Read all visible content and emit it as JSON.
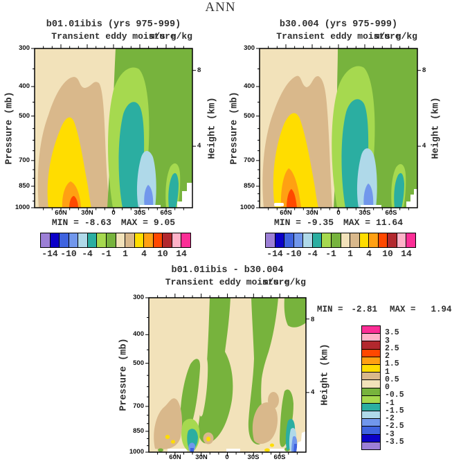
{
  "page_title": "ANN",
  "palette": [
    "#9C7FD6",
    "#0B00C8",
    "#3F63DF",
    "#7197EC",
    "#AFD9E9",
    "#2BAEA1",
    "#A6D94F",
    "#77B33D",
    "#F2E2BA",
    "#D9B88B",
    "#FFDD00",
    "#FFA013",
    "#FF4800",
    "#B2282E",
    "#FFB2C8",
    "#FB2E96"
  ],
  "panels": [
    {
      "title": "b01.01ibis (yrs 975-999)",
      "subtitle": "Transient eddy moisture",
      "units": "m/s g/kg",
      "min_label": "MIN =",
      "min_value": "-8.63",
      "max_label": "MAX =",
      "max_value": "9.05"
    },
    {
      "title": "b30.004 (yrs 975-999)",
      "subtitle": "Transient eddy moisture",
      "units": "m/s g/kg",
      "min_label": "MIN =",
      "min_value": "-9.35",
      "max_label": "MAX =",
      "max_value": "11.64"
    },
    {
      "title": "b01.01ibis - b30.004",
      "subtitle": "Transient eddy moisture",
      "units": "m/s g/kg",
      "min_label": "MIN =",
      "min_value": "-2.81",
      "max_label": "MAX =",
      "max_value": "1.94"
    }
  ],
  "axes": {
    "pressure_label": "Pressure (mb)",
    "height_label": "Height (km)",
    "pressure_ticks": [
      "300",
      "400",
      "500",
      "700",
      "850",
      "1000"
    ],
    "lat_ticks": [
      "60N",
      "30N",
      "0",
      "30S",
      "60S"
    ],
    "height_ticks": [
      "8",
      "4"
    ]
  },
  "colorbar_horizontal": {
    "labels": [
      "-14",
      "-10",
      "-4",
      "-1",
      "1",
      "4",
      "10",
      "14"
    ]
  },
  "colorbar_vertical": {
    "labels": [
      "3.5",
      "3",
      "2.5",
      "2",
      "1.5",
      "1",
      "0.5",
      "0",
      "-0.5",
      "-1",
      "-1.5",
      "-2",
      "-2.5",
      "-3",
      "-3.5"
    ]
  },
  "chart_data": [
    {
      "type": "filled-contour",
      "season": "ANN",
      "title": "b01.01ibis (yrs 975-999)",
      "variable": "Transient eddy moisture",
      "units": "m/s g/kg",
      "min": -8.63,
      "max": 9.05,
      "x_axis": {
        "ticks": [
          "60N",
          "30N",
          "0",
          "30S",
          "60S"
        ],
        "range": [
          "90N",
          "90S"
        ]
      },
      "y_axis_left": {
        "label": "Pressure (mb)",
        "ticks": [
          300,
          400,
          500,
          700,
          850,
          1000
        ],
        "scale": "log"
      },
      "y_axis_right": {
        "label": "Height (km)",
        "ticks": [
          8,
          4
        ]
      },
      "contour_levels": [
        -14,
        -12,
        -10,
        -7,
        -4,
        -2,
        -1,
        0,
        1,
        2,
        4,
        7,
        10,
        12,
        14
      ],
      "colorbar_labels": [
        -14,
        -10,
        -4,
        -1,
        1,
        4,
        10,
        14
      ],
      "legend_position": "bottom"
    },
    {
      "type": "filled-contour",
      "season": "ANN",
      "title": "b30.004 (yrs 975-999)",
      "variable": "Transient eddy moisture",
      "units": "m/s g/kg",
      "min": -9.35,
      "max": 11.64,
      "x_axis": {
        "ticks": [
          "60N",
          "30N",
          "0",
          "30S",
          "60S"
        ],
        "range": [
          "90N",
          "90S"
        ]
      },
      "y_axis_left": {
        "label": "Pressure (mb)",
        "ticks": [
          300,
          400,
          500,
          700,
          850,
          1000
        ],
        "scale": "log"
      },
      "y_axis_right": {
        "label": "Height (km)",
        "ticks": [
          8,
          4
        ]
      },
      "contour_levels": [
        -14,
        -12,
        -10,
        -7,
        -4,
        -2,
        -1,
        0,
        1,
        2,
        4,
        7,
        10,
        12,
        14
      ],
      "colorbar_labels": [
        -14,
        -10,
        -4,
        -1,
        1,
        4,
        10,
        14
      ],
      "legend_position": "bottom"
    },
    {
      "type": "filled-contour",
      "season": "ANN",
      "title": "b01.01ibis - b30.004",
      "variable": "Transient eddy moisture",
      "units": "m/s g/kg",
      "min": -2.81,
      "max": 1.94,
      "x_axis": {
        "ticks": [
          "60N",
          "30N",
          "0",
          "30S",
          "60S"
        ],
        "range": [
          "90N",
          "90S"
        ]
      },
      "y_axis_left": {
        "label": "Pressure (mb)",
        "ticks": [
          300,
          400,
          500,
          700,
          850,
          1000
        ],
        "scale": "log"
      },
      "y_axis_right": {
        "label": "Height (km)",
        "ticks": [
          8,
          4
        ]
      },
      "contour_levels": [
        -3.5,
        -3,
        -2.5,
        -2,
        -1.5,
        -1,
        -0.5,
        0,
        0.5,
        1,
        1.5,
        2,
        2.5,
        3,
        3.5
      ],
      "colorbar_labels": [
        3.5,
        3,
        2.5,
        2,
        1.5,
        1,
        0.5,
        0,
        -0.5,
        -1,
        -1.5,
        -2,
        -2.5,
        -3,
        -3.5
      ],
      "legend_position": "right"
    }
  ]
}
